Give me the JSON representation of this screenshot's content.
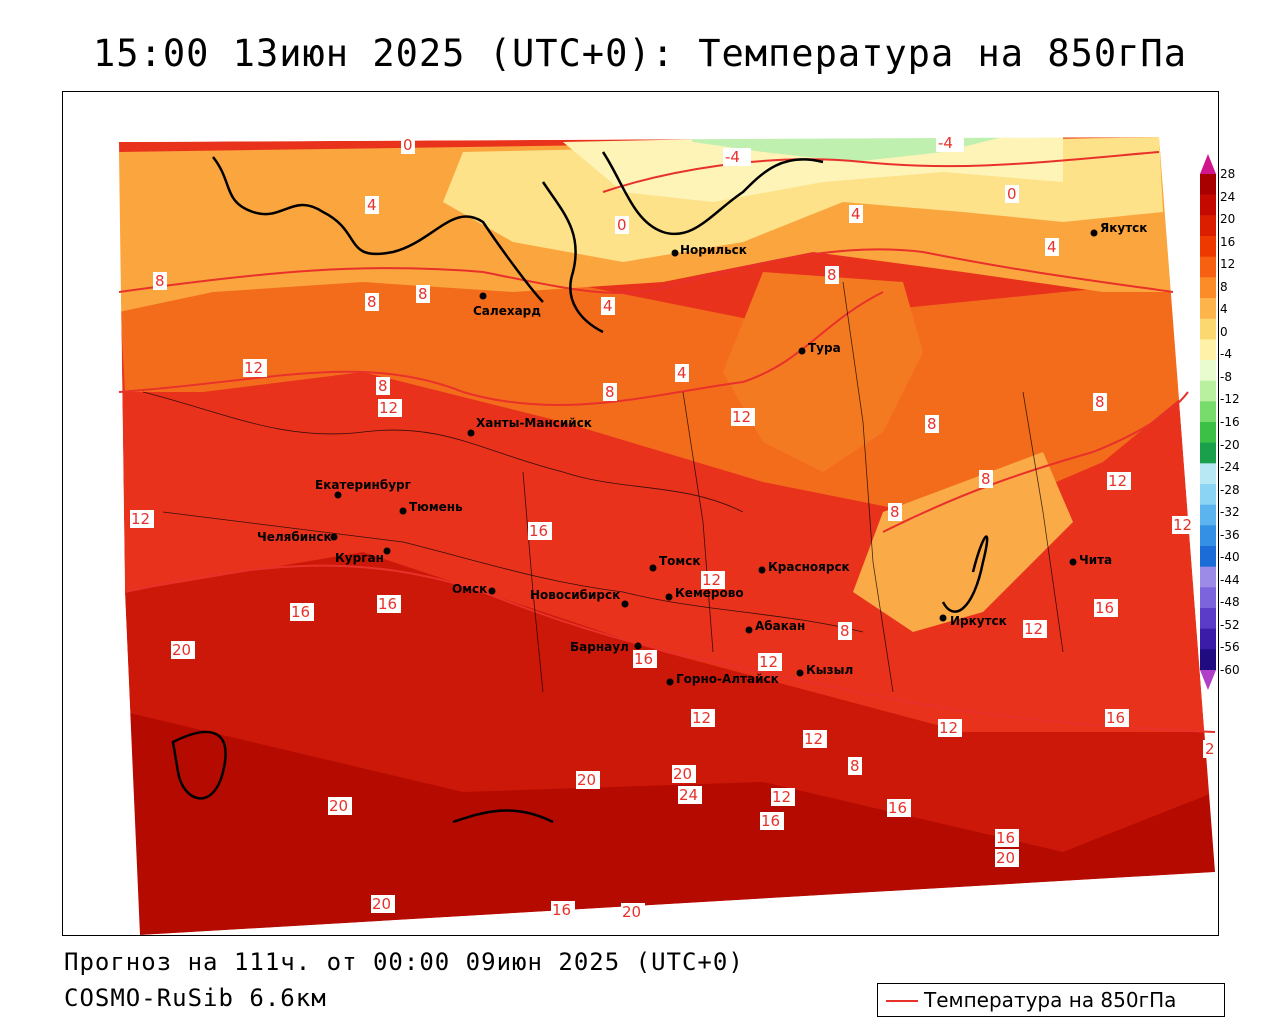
{
  "title": "15:00 13июн 2025 (UTC+0): Температура на 850гПа",
  "footer": {
    "forecast_line": "Прогноз на 111ч. от 00:00 09июн 2025 (UTC+0)",
    "model_line": "COSMO-RuSib 6.6км"
  },
  "legend": {
    "label": "Температура на 850гПа",
    "line_color": "#e8312a"
  },
  "colorbar": {
    "labels": [
      "28",
      "24",
      "20",
      "16",
      "12",
      "8",
      "4",
      "0",
      "-4",
      "-8",
      "-12",
      "-16",
      "-20",
      "-24",
      "-28",
      "-32",
      "-36",
      "-40",
      "-44",
      "-48",
      "-52",
      "-56",
      "-60"
    ],
    "colors": [
      "#a80000",
      "#c40a00",
      "#dc1e00",
      "#ee3a00",
      "#f66010",
      "#fb8c28",
      "#fdb44a",
      "#fcd870",
      "#fff2a8",
      "#e8fcd0",
      "#b8f0a0",
      "#78dc6c",
      "#3cc046",
      "#1aa04a",
      "#b8e8f4",
      "#8cd4f4",
      "#5cb4ee",
      "#3490e4",
      "#1c6cd8",
      "#9c8ce8",
      "#7c64dc",
      "#5a3cc8",
      "#3a1ca8",
      "#200c80"
    ],
    "top_arrow_color": "#d0168c",
    "bottom_arrow_color": "#b040c8"
  },
  "cities": [
    {
      "name": "Якутск"
    },
    {
      "name": "Норильск"
    },
    {
      "name": "Салехард"
    },
    {
      "name": "Тура"
    },
    {
      "name": "Ханты-Мансийск"
    },
    {
      "name": "Екатеринбург"
    },
    {
      "name": "Тюмень"
    },
    {
      "name": "Челябинск"
    },
    {
      "name": "Курган"
    },
    {
      "name": "Омск"
    },
    {
      "name": "Новосибирск"
    },
    {
      "name": "Томск"
    },
    {
      "name": "Кемерово"
    },
    {
      "name": "Красноярск"
    },
    {
      "name": "Барнаул"
    },
    {
      "name": "Абакан"
    },
    {
      "name": "Горно-Алтайск"
    },
    {
      "name": "Кызыл"
    },
    {
      "name": "Иркутск"
    },
    {
      "name": "Чита"
    }
  ],
  "isolines": [
    {
      "value": "0"
    },
    {
      "value": "-4"
    },
    {
      "value": "-4"
    },
    {
      "value": "0"
    },
    {
      "value": "4"
    },
    {
      "value": "4"
    },
    {
      "value": "0"
    },
    {
      "value": "4"
    },
    {
      "value": "4"
    },
    {
      "value": "8"
    },
    {
      "value": "8"
    },
    {
      "value": "8"
    },
    {
      "value": "8"
    },
    {
      "value": "4"
    },
    {
      "value": "8"
    },
    {
      "value": "12"
    },
    {
      "value": "8"
    },
    {
      "value": "12"
    },
    {
      "value": "8"
    },
    {
      "value": "4"
    },
    {
      "value": "12"
    },
    {
      "value": "8"
    },
    {
      "value": "8"
    },
    {
      "value": "12"
    },
    {
      "value": "12"
    },
    {
      "value": "16"
    },
    {
      "value": "8"
    },
    {
      "value": "12"
    },
    {
      "value": "12"
    },
    {
      "value": "16"
    },
    {
      "value": "16"
    },
    {
      "value": "20"
    },
    {
      "value": "16"
    },
    {
      "value": "12"
    },
    {
      "value": "8"
    },
    {
      "value": "12"
    },
    {
      "value": "12"
    },
    {
      "value": "12"
    },
    {
      "value": "16"
    },
    {
      "value": "12"
    },
    {
      "value": "16"
    },
    {
      "value": "16"
    },
    {
      "value": "20"
    },
    {
      "value": "20"
    },
    {
      "value": "24"
    },
    {
      "value": "12"
    },
    {
      "value": "8"
    },
    {
      "value": "16"
    },
    {
      "value": "16"
    },
    {
      "value": "20"
    },
    {
      "value": "20"
    },
    {
      "value": "16"
    },
    {
      "value": "20"
    },
    {
      "value": "20"
    },
    {
      "value": "16"
    },
    {
      "value": "2"
    }
  ]
}
